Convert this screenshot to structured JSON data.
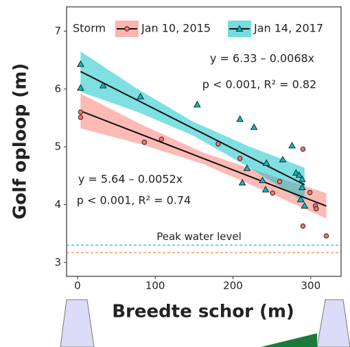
{
  "chart_data": {
    "type": "scatter",
    "x_label": "Breedte schor (m)",
    "y_label": "Golf oploop (m)",
    "xlim": [
      -14,
      339
    ],
    "ylim": [
      2.76,
      7.42
    ],
    "xticks": [
      0,
      100,
      200,
      300
    ],
    "yticks": [
      3,
      4,
      5,
      6,
      7
    ],
    "legend_title": "Storm",
    "series": [
      {
        "name": "Jan 10, 2015",
        "color": "#F8766D",
        "marker": "circle",
        "x": [
          4,
          4,
          86,
          108,
          181,
          209,
          251,
          260,
          290,
          290,
          299,
          306,
          307,
          320
        ],
        "values": [
          5.6,
          5.51,
          5.08,
          5.13,
          5.05,
          4.8,
          4.2,
          4.4,
          4.96,
          3.63,
          4.21,
          3.98,
          3.93,
          3.46
        ],
        "fit": {
          "intercept": 5.64,
          "slope": -0.0052,
          "x_range": [
            4,
            320
          ]
        },
        "ci_x": [
          4,
          83,
          162,
          241,
          320
        ],
        "ci_lower": [
          5.32,
          5.04,
          4.7,
          4.24,
          3.76
        ],
        "ci_upper": [
          5.92,
          5.38,
          4.9,
          4.54,
          4.2
        ],
        "equation": "y = 5.64 – 0.0052x",
        "stats": "p < 0.001,  R² = 0.74"
      },
      {
        "name": "Jan 14, 2017",
        "color": "#00BFC4",
        "marker": "triangle",
        "x": [
          4,
          4,
          33,
          81,
          154,
          209,
          227,
          212,
          218,
          238,
          242,
          243,
          264,
          276,
          281,
          285,
          289,
          289,
          287,
          292
        ],
        "values": [
          6.43,
          6.02,
          6.06,
          5.87,
          5.73,
          5.48,
          5.34,
          4.38,
          4.63,
          4.42,
          4.26,
          4.72,
          4.78,
          5.02,
          4.55,
          4.51,
          4.44,
          4.3,
          4.09,
          3.98
        ],
        "fit": {
          "intercept": 6.33,
          "slope": -0.0068,
          "x_range": [
            4,
            292
          ]
        },
        "ci_x": [
          4,
          76,
          148,
          220,
          292
        ],
        "ci_lower": [
          5.95,
          5.61,
          5.2,
          4.65,
          4.04
        ],
        "ci_upper": [
          6.65,
          6.01,
          5.44,
          5.01,
          4.64
        ],
        "equation": "y = 6.33 – 0.0068x",
        "stats": "p < 0.001,  R² = 0.82"
      }
    ],
    "hlines": [
      {
        "value": 3.3,
        "color": "#7fc8d8"
      },
      {
        "value": 3.17,
        "color": "#f4b183"
      }
    ],
    "hline_label": "Peak water level"
  }
}
